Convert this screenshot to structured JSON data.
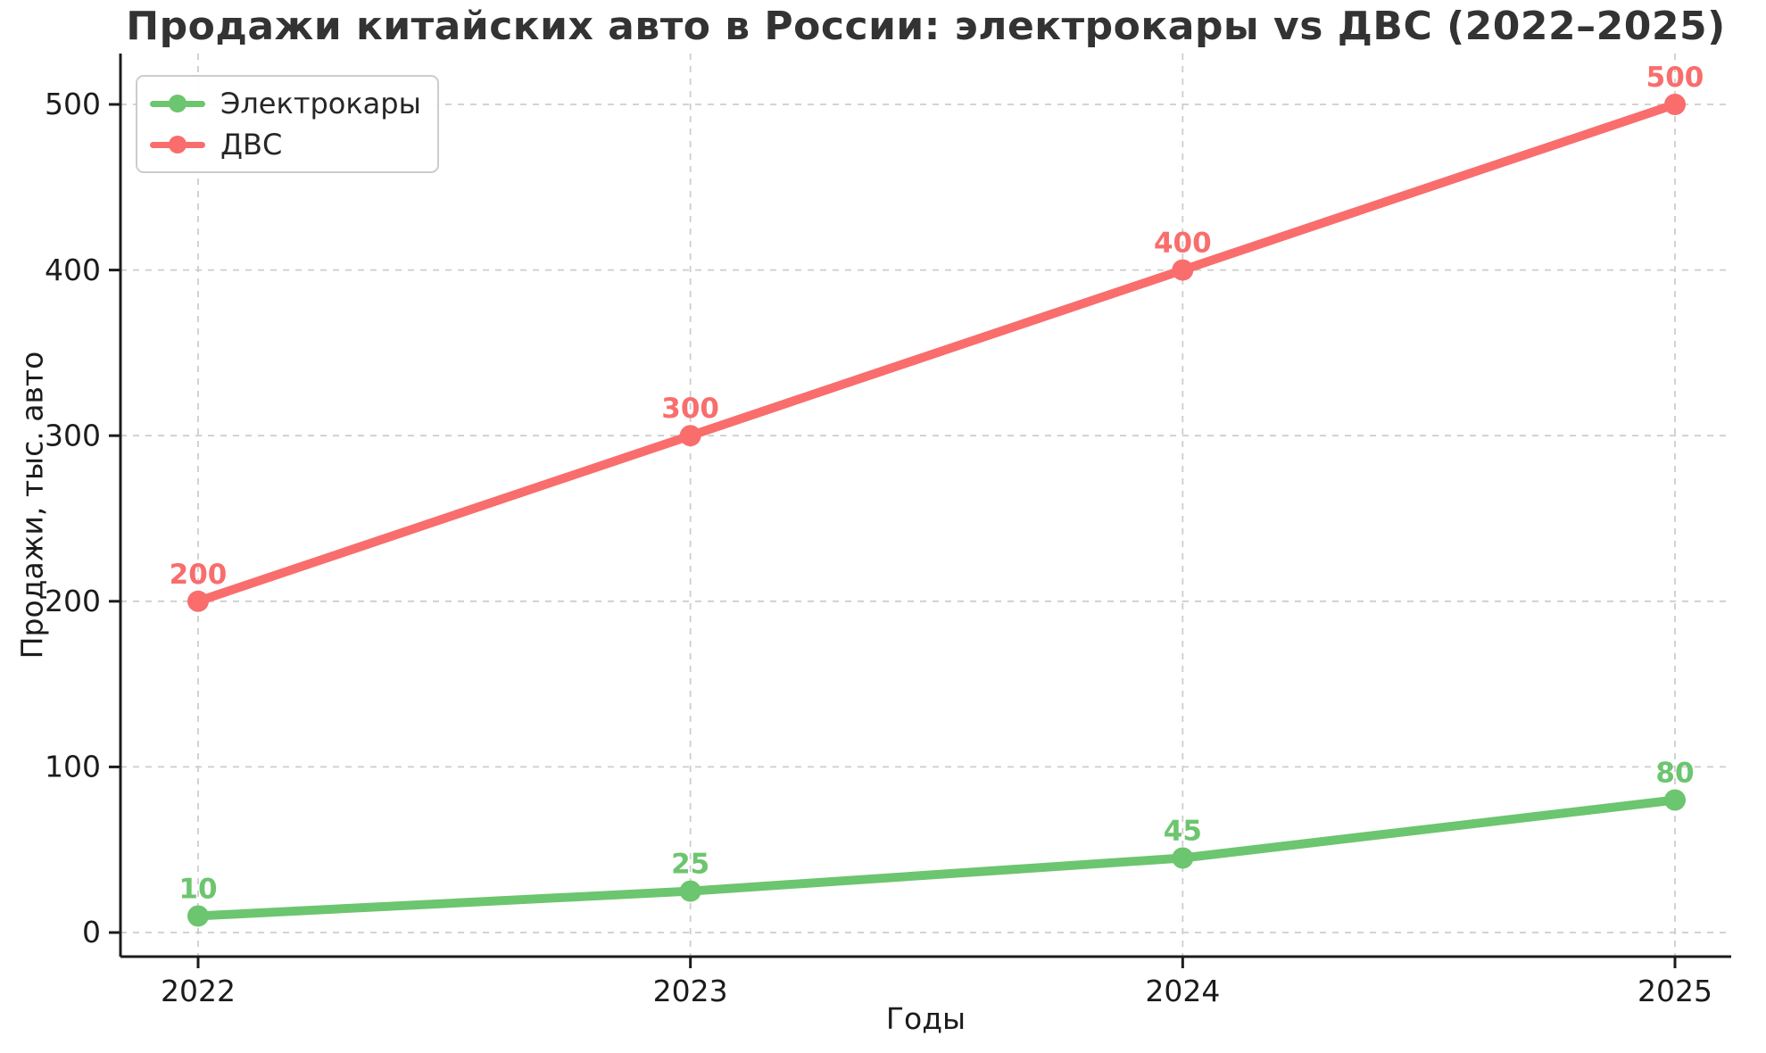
{
  "chart_data": {
    "type": "line",
    "title": "Продажи китайских авто в России: электрокары vs ДВС (2022–2025)",
    "xlabel": "Годы",
    "ylabel": "Продажи, тыс. авто",
    "categories": [
      "2022",
      "2023",
      "2024",
      "2025"
    ],
    "series": [
      {
        "name": "Электрокары",
        "values": [
          10,
          25,
          45,
          80
        ],
        "color": "#6cc56f"
      },
      {
        "name": "ДВС",
        "values": [
          200,
          300,
          400,
          500
        ],
        "color": "#f96d6d"
      }
    ],
    "yticks": [
      0,
      100,
      200,
      300,
      400,
      500
    ],
    "ylim": [
      0,
      530
    ],
    "grid": "dashed",
    "legend_position": "upper-left",
    "data_labels": true,
    "colors": {
      "grid": "#cdcdcd",
      "axis": "#1c1c1c",
      "tick_text": "#1c1c1c",
      "title_text": "#333333",
      "background": "#ffffff"
    }
  }
}
